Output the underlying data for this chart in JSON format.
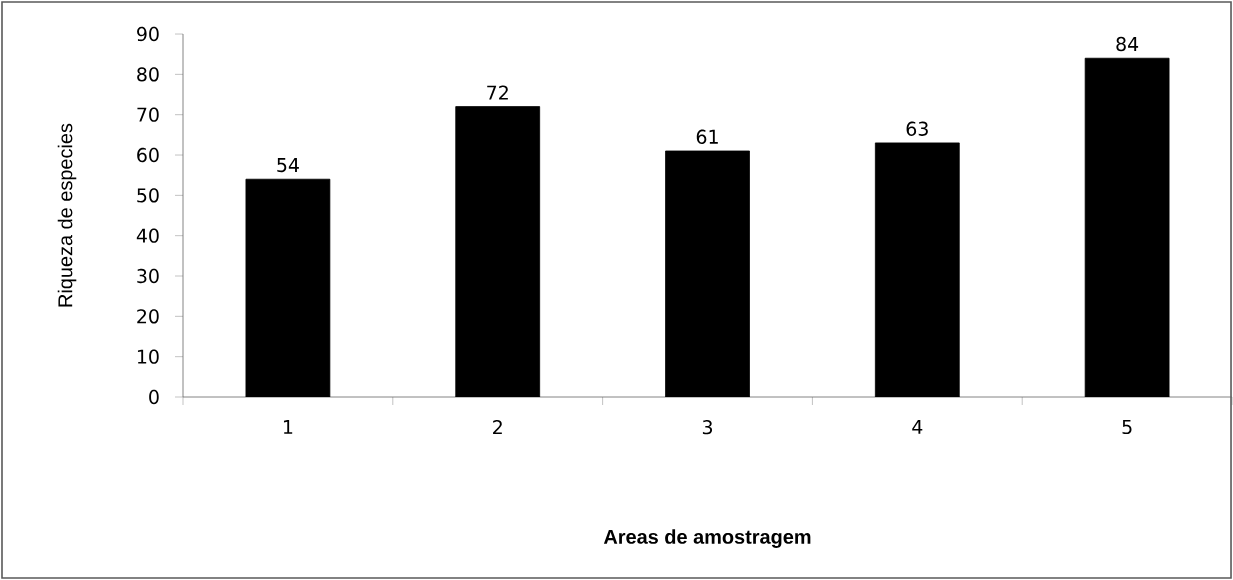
{
  "chart_data": {
    "type": "bar",
    "xlabel": "Areas de amostragem",
    "ylabel": "Riqueza de especies",
    "categories": [
      "1",
      "2",
      "3",
      "4",
      "5"
    ],
    "values": [
      54,
      72,
      61,
      63,
      84
    ],
    "color": "#000000",
    "ylim": [
      0,
      90
    ],
    "yticks": [
      0,
      10,
      20,
      30,
      40,
      50,
      60,
      70,
      80,
      90
    ],
    "data_labels": true
  }
}
